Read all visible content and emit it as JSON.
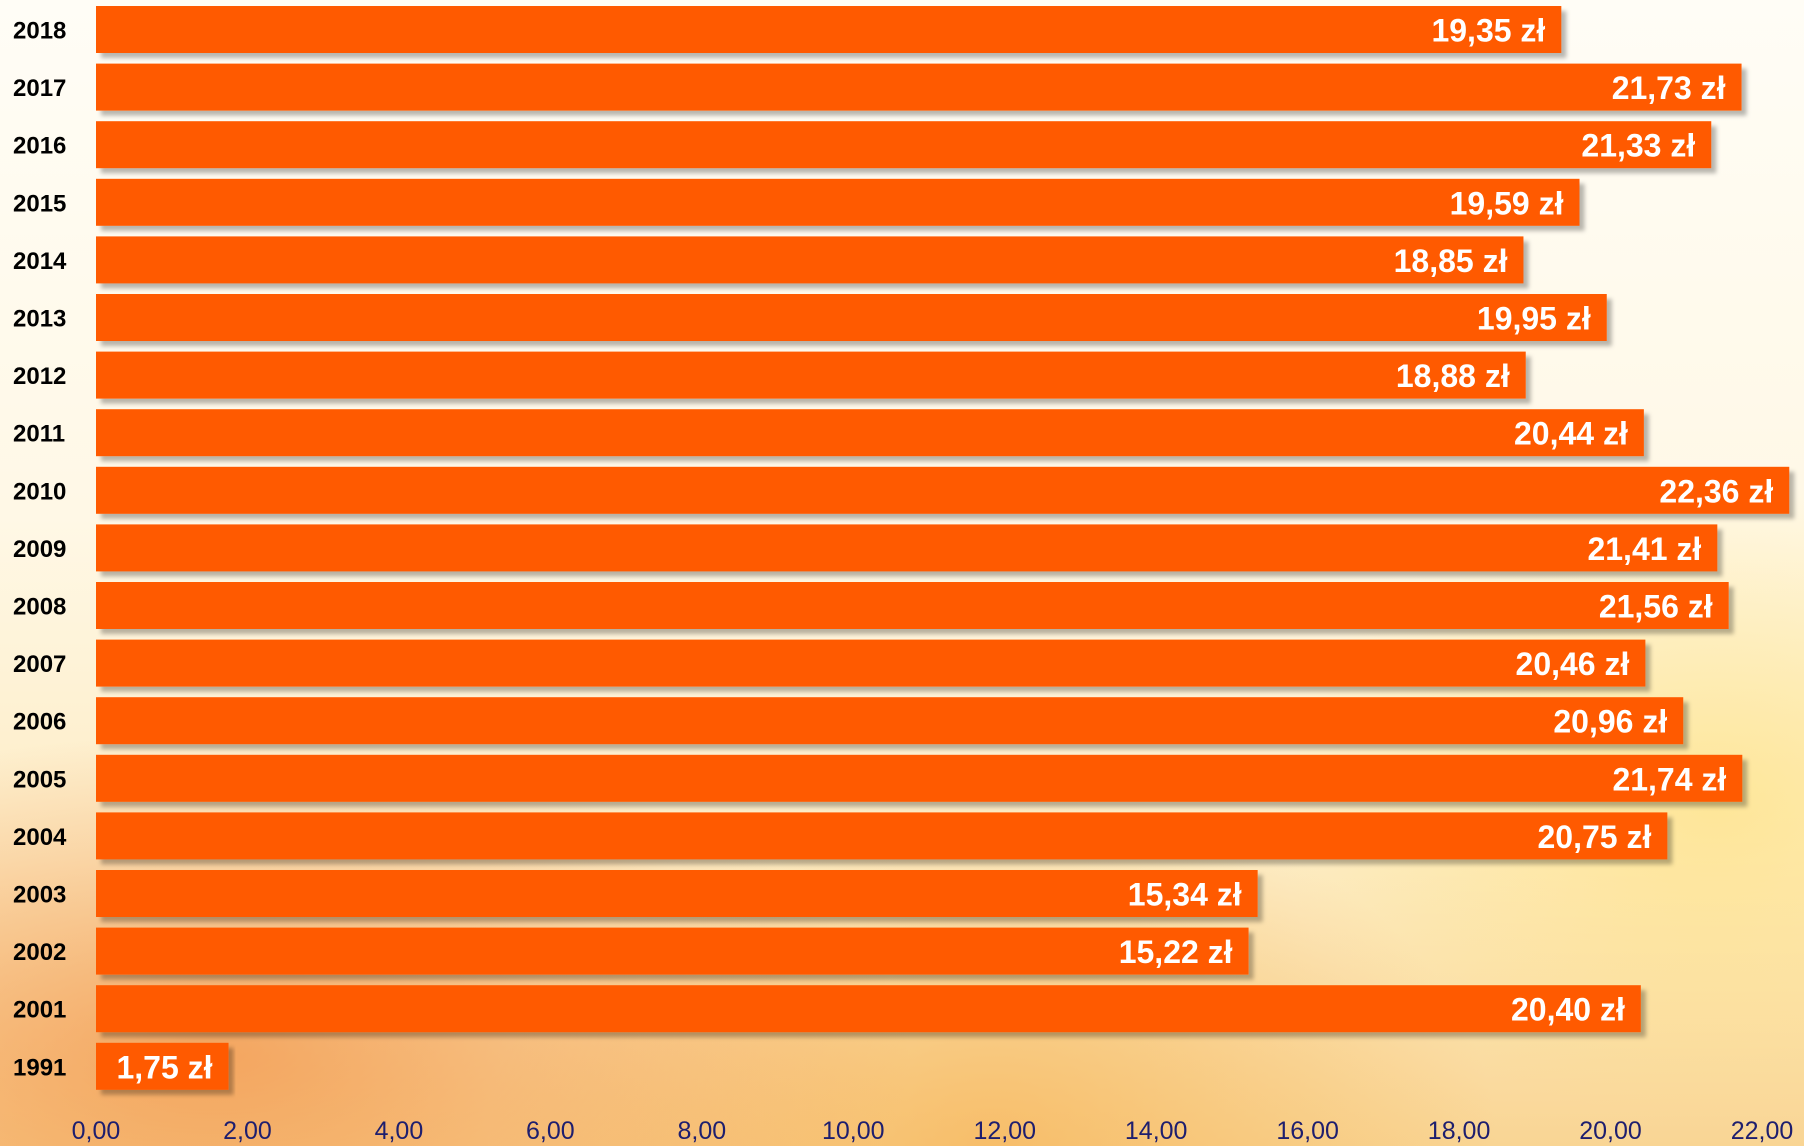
{
  "chart_data": {
    "type": "bar",
    "orientation": "horizontal",
    "categories": [
      "2018",
      "2017",
      "2016",
      "2015",
      "2014",
      "2013",
      "2012",
      "2011",
      "2010",
      "2009",
      "2008",
      "2007",
      "2006",
      "2005",
      "2004",
      "2003",
      "2002",
      "2001",
      "1991"
    ],
    "values": [
      19.35,
      21.73,
      21.33,
      19.59,
      18.85,
      19.95,
      18.88,
      20.44,
      22.36,
      21.41,
      21.56,
      20.46,
      20.96,
      21.74,
      20.75,
      15.34,
      15.22,
      20.4,
      1.75
    ],
    "value_labels": [
      "19,35 zł",
      "21,73 zł",
      "21,33 zł",
      "19,59 zł",
      "18,85 zł",
      "19,95 zł",
      "18,88 zł",
      "20,44 zł",
      "22,36 zł",
      "21,41 zł",
      "21,56 zł",
      "20,46 zł",
      "20,96 zł",
      "21,74 zł",
      "20,75 zł",
      "15,34 zł",
      "15,22 zł",
      "20,40 zł",
      "1,75 zł"
    ],
    "x_ticks": [
      "0,00",
      "2,00",
      "4,00",
      "6,00",
      "8,00",
      "10,00",
      "12,00",
      "14,00",
      "16,00",
      "18,00",
      "20,00",
      "22,00"
    ],
    "xlim": [
      0,
      22
    ],
    "title": "",
    "xlabel": "",
    "ylabel": "",
    "grid": false,
    "legend": "none",
    "bar_color": "#ff5a00",
    "label_color": "#ffffff",
    "tick_color": "#1e1e6e"
  }
}
